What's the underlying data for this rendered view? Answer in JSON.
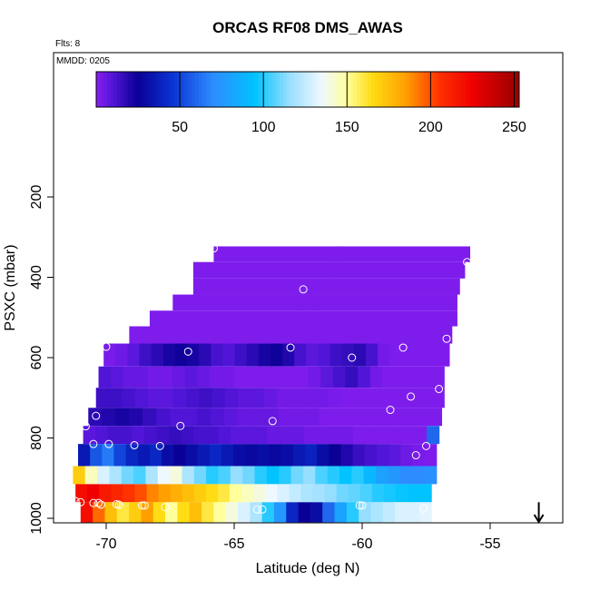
{
  "chart_data": {
    "type": "heatmap",
    "title": "ORCAS RF08 DMS_AWAS",
    "flights_label": "Flts: 8",
    "date_label": "MMDD: 0205",
    "xlabel": "Latitude (deg N)",
    "ylabel": "PSXC (mbar)",
    "xlim": [
      -71.7,
      -53.2
    ],
    "ylim_reversed": [
      1010,
      95
    ],
    "x_ticks": [
      -70,
      -65,
      -60,
      -55
    ],
    "y_ticks": [
      200,
      400,
      600,
      800,
      1000
    ],
    "colorbar": {
      "range": [
        0,
        253
      ],
      "ticks": [
        50,
        100,
        150,
        200,
        250
      ],
      "stops": [
        {
          "v": 0,
          "c": "#8a1ef2"
        },
        {
          "v": 10,
          "c": "#5015d6"
        },
        {
          "v": 25,
          "c": "#0a0096"
        },
        {
          "v": 45,
          "c": "#0a32d2"
        },
        {
          "v": 70,
          "c": "#2d8cff"
        },
        {
          "v": 95,
          "c": "#00c3ff"
        },
        {
          "v": 115,
          "c": "#96deff"
        },
        {
          "v": 135,
          "c": "#f0f8ff"
        },
        {
          "v": 150,
          "c": "#ffff9c"
        },
        {
          "v": 165,
          "c": "#ffdc14"
        },
        {
          "v": 185,
          "c": "#ffa000"
        },
        {
          "v": 205,
          "c": "#ff3200"
        },
        {
          "v": 225,
          "c": "#f00000"
        },
        {
          "v": 253,
          "c": "#960000"
        }
      ]
    },
    "bands": [
      {
        "p_top": 323,
        "p_bot": 362,
        "lat_start": -65.8,
        "lat_end": -55.8,
        "values": [
          2,
          2
        ]
      },
      {
        "p_top": 362,
        "p_bot": 403,
        "lat_start": -66.6,
        "lat_end": -56.0,
        "values": [
          2,
          2
        ]
      },
      {
        "p_top": 403,
        "p_bot": 443,
        "lat_start": -66.6,
        "lat_end": -56.2,
        "values": [
          2,
          2
        ]
      },
      {
        "p_top": 443,
        "p_bot": 483,
        "lat_start": -67.4,
        "lat_end": -56.3,
        "values": [
          2,
          2
        ]
      },
      {
        "p_top": 483,
        "p_bot": 522,
        "lat_start": -68.3,
        "lat_end": -56.3,
        "values": [
          2,
          2
        ]
      },
      {
        "p_top": 522,
        "p_bot": 565,
        "lat_start": -69.1,
        "lat_end": -56.5,
        "values": [
          2,
          2
        ]
      },
      {
        "p_top": 565,
        "p_bot": 622,
        "lat_start": -70.1,
        "lat_end": -56.6,
        "values": [
          3,
          5,
          8,
          14,
          18,
          22,
          24,
          22,
          18,
          12,
          10,
          14,
          18,
          22,
          24,
          20,
          12,
          8,
          10,
          14,
          16,
          18,
          12,
          4,
          2,
          2,
          2,
          2,
          2
        ]
      },
      {
        "p_top": 622,
        "p_bot": 675,
        "lat_start": -70.3,
        "lat_end": -56.8,
        "values": [
          10,
          8,
          6,
          6,
          4,
          4,
          6,
          8,
          6,
          4,
          4,
          2,
          2,
          2,
          2,
          2,
          2,
          4,
          8,
          12,
          16,
          10,
          4,
          2,
          2,
          2,
          2,
          2
        ]
      },
      {
        "p_top": 675,
        "p_bot": 725,
        "lat_start": -70.4,
        "lat_end": -56.8,
        "values": [
          14,
          14,
          12,
          10,
          8,
          8,
          10,
          12,
          14,
          12,
          10,
          8,
          8,
          6,
          4,
          4,
          4,
          4,
          3,
          2,
          2,
          2,
          2,
          2,
          2,
          2,
          2
        ]
      },
      {
        "p_top": 725,
        "p_bot": 770,
        "lat_start": -70.7,
        "lat_end": -56.9,
        "values": [
          18,
          20,
          22,
          20,
          16,
          12,
          10,
          10,
          12,
          10,
          8,
          6,
          6,
          6,
          4,
          4,
          4,
          2,
          2,
          2,
          2,
          2,
          2,
          2,
          2,
          2
        ]
      },
      {
        "p_top": 770,
        "p_bot": 815,
        "lat_start": -70.9,
        "lat_end": -57.0,
        "values": [
          8,
          10,
          12,
          12,
          10,
          12,
          14,
          16,
          14,
          12,
          12,
          10,
          8,
          8,
          8,
          6,
          6,
          6,
          4,
          4,
          4,
          4,
          2,
          2,
          2,
          2,
          2,
          2,
          60
        ]
      },
      {
        "p_top": 815,
        "p_bot": 870,
        "lat_start": -71.1,
        "lat_end": -57.1,
        "values": [
          35,
          55,
          65,
          50,
          40,
          35,
          40,
          30,
          25,
          30,
          35,
          40,
          35,
          30,
          28,
          30,
          28,
          30,
          35,
          38,
          30,
          25,
          20,
          15,
          12,
          10,
          8,
          5,
          3,
          2
        ]
      },
      {
        "p_top": 870,
        "p_bot": 915,
        "lat_start": -71.3,
        "lat_end": -57.1,
        "values": [
          170,
          145,
          130,
          120,
          110,
          105,
          120,
          135,
          140,
          120,
          110,
          100,
          105,
          115,
          110,
          100,
          95,
          100,
          110,
          115,
          105,
          100,
          95,
          100,
          90,
          80,
          75,
          70,
          70,
          72
        ]
      },
      {
        "p_top": 915,
        "p_bot": 960,
        "lat_start": -71.2,
        "lat_end": -57.3,
        "values": [
          220,
          225,
          215,
          210,
          205,
          200,
          190,
          185,
          180,
          175,
          170,
          165,
          160,
          150,
          145,
          140,
          135,
          130,
          125,
          120,
          118,
          115,
          110,
          108,
          105,
          100,
          98,
          96,
          95,
          95
        ]
      },
      {
        "p_top": 960,
        "p_bot": 1010,
        "lat_start": -71.0,
        "lat_end": -57.3,
        "values": [
          220,
          195,
          175,
          160,
          170,
          185,
          165,
          150,
          165,
          175,
          160,
          150,
          140,
          130,
          120,
          100,
          75,
          40,
          25,
          30,
          60,
          80,
          100,
          115,
          120,
          125,
          130,
          130,
          132
        ]
      }
    ],
    "points": [
      {
        "lat": -65.8,
        "p": 328
      },
      {
        "lat": -55.9,
        "p": 362
      },
      {
        "lat": -62.3,
        "p": 430
      },
      {
        "lat": -56.7,
        "p": 553
      },
      {
        "lat": -70.0,
        "p": 573
      },
      {
        "lat": -66.8,
        "p": 585
      },
      {
        "lat": -62.8,
        "p": 575
      },
      {
        "lat": -58.4,
        "p": 575
      },
      {
        "lat": -60.4,
        "p": 600
      },
      {
        "lat": -57.0,
        "p": 678
      },
      {
        "lat": -58.1,
        "p": 697
      },
      {
        "lat": -58.9,
        "p": 730
      },
      {
        "lat": -70.4,
        "p": 745
      },
      {
        "lat": -63.5,
        "p": 758
      },
      {
        "lat": -70.8,
        "p": 771
      },
      {
        "lat": -67.1,
        "p": 770
      },
      {
        "lat": -71.4,
        "p": 816
      },
      {
        "lat": -70.5,
        "p": 815
      },
      {
        "lat": -69.9,
        "p": 815
      },
      {
        "lat": -68.9,
        "p": 818
      },
      {
        "lat": -67.9,
        "p": 820
      },
      {
        "lat": -57.5,
        "p": 820
      },
      {
        "lat": -57.9,
        "p": 843
      },
      {
        "lat": -71.2,
        "p": 957
      },
      {
        "lat": -71.0,
        "p": 960
      },
      {
        "lat": -70.5,
        "p": 962
      },
      {
        "lat": -70.3,
        "p": 962
      },
      {
        "lat": -70.2,
        "p": 966
      },
      {
        "lat": -69.6,
        "p": 965
      },
      {
        "lat": -69.5,
        "p": 966
      },
      {
        "lat": -68.6,
        "p": 968
      },
      {
        "lat": -68.5,
        "p": 968
      },
      {
        "lat": -67.7,
        "p": 972
      },
      {
        "lat": -60.1,
        "p": 968
      },
      {
        "lat": -60.0,
        "p": 968
      },
      {
        "lat": -64.1,
        "p": 978
      },
      {
        "lat": -63.9,
        "p": 978
      },
      {
        "lat": -57.6,
        "p": 976
      }
    ],
    "arrow": {
      "lat": -53.1,
      "p_from": 960,
      "p_to": 1010
    }
  }
}
